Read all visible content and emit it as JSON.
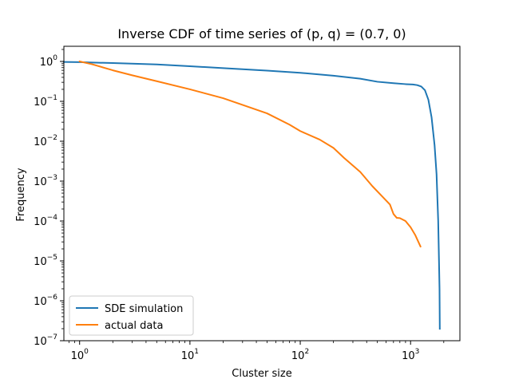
{
  "chart_data": {
    "type": "line",
    "title": "Inverse CDF of time series of (p, q) = (0.7, 0)",
    "xlabel": "Cluster size",
    "ylabel": "Frequency",
    "xscale": "log",
    "yscale": "log",
    "xlim": [
      0.72,
      2800
    ],
    "ylim": [
      1e-07,
      2.4
    ],
    "x_ticks": [
      {
        "value": 1,
        "base": "10",
        "exp": "0"
      },
      {
        "value": 10,
        "base": "10",
        "exp": "1"
      },
      {
        "value": 100,
        "base": "10",
        "exp": "2"
      },
      {
        "value": 1000,
        "base": "10",
        "exp": "3"
      }
    ],
    "y_ticks": [
      {
        "value": 1e-07,
        "base": "10",
        "exp": "−7"
      },
      {
        "value": 1e-06,
        "base": "10",
        "exp": "−6"
      },
      {
        "value": 1e-05,
        "base": "10",
        "exp": "−5"
      },
      {
        "value": 0.0001,
        "base": "10",
        "exp": "−4"
      },
      {
        "value": 0.001,
        "base": "10",
        "exp": "−3"
      },
      {
        "value": 0.01,
        "base": "10",
        "exp": "−2"
      },
      {
        "value": 0.1,
        "base": "10",
        "exp": "−1"
      },
      {
        "value": 1,
        "base": "10",
        "exp": "0"
      }
    ],
    "grid": false,
    "legend_position": "lower-left",
    "series": [
      {
        "name": "SDE simulation",
        "color": "#1f77b4",
        "x": [
          0.72,
          1,
          2,
          5,
          10,
          20,
          50,
          100,
          200,
          350,
          500,
          700,
          900,
          1050,
          1150,
          1250,
          1350,
          1450,
          1550,
          1650,
          1720,
          1780,
          1810,
          1830,
          1840
        ],
        "y": [
          0.97,
          0.96,
          0.91,
          0.84,
          0.76,
          0.68,
          0.59,
          0.52,
          0.44,
          0.37,
          0.31,
          0.285,
          0.27,
          0.265,
          0.255,
          0.235,
          0.19,
          0.11,
          0.04,
          0.008,
          0.0015,
          0.0001,
          1e-05,
          2e-06,
          2e-07
        ]
      },
      {
        "name": "actual data",
        "color": "#ff7f0e",
        "x": [
          1,
          1.3,
          2,
          3,
          5,
          10,
          20,
          50,
          80,
          100,
          150,
          200,
          250,
          350,
          450,
          550,
          650,
          700,
          750,
          800,
          900,
          1000,
          1100,
          1230
        ],
        "y": [
          1.0,
          0.85,
          0.6,
          0.45,
          0.32,
          0.2,
          0.12,
          0.05,
          0.026,
          0.018,
          0.011,
          0.0068,
          0.0038,
          0.0017,
          0.00075,
          0.00042,
          0.00026,
          0.00015,
          0.00012,
          0.000118,
          0.0001,
          7e-05,
          4.5e-05,
          2.3e-05
        ]
      }
    ]
  }
}
